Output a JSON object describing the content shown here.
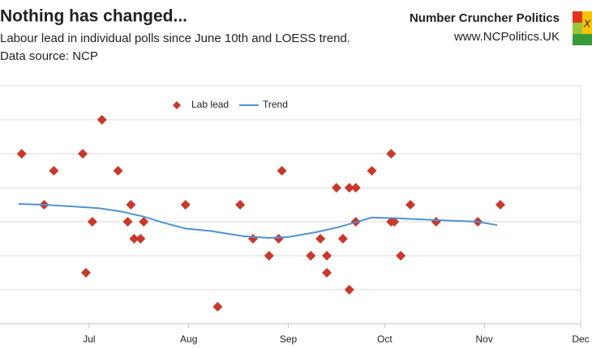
{
  "chart_data": {
    "type": "scatter",
    "title": "Nothing has changed...",
    "subtitle": "Labour lead in individual polls since June 10th and LOESS trend.",
    "source": "Data source: NCP",
    "xlim": [
      154,
      335
    ],
    "xticks": [
      {
        "value": 182,
        "label": "Jul"
      },
      {
        "value": 213,
        "label": "Aug"
      },
      {
        "value": 244,
        "label": "Sep"
      },
      {
        "value": 274,
        "label": "Oct"
      },
      {
        "value": 305,
        "label": "Nov"
      },
      {
        "value": 335,
        "label": "Dec"
      }
    ],
    "ylim": [
      0,
      14
    ],
    "yticks": [
      0,
      2,
      4,
      6,
      8,
      10,
      12,
      14
    ],
    "grid": true,
    "series": [
      {
        "name": "Lab lead",
        "type": "scatter",
        "color": "#c9382b",
        "x": [
          161,
          168,
          171,
          180,
          181,
          183,
          186,
          191,
          194,
          195,
          196,
          198,
          199,
          212,
          222,
          229,
          233,
          238,
          241,
          242,
          251,
          254,
          256,
          256,
          259,
          261,
          263,
          263,
          265,
          265,
          270,
          276,
          276,
          277,
          279,
          282,
          290,
          303,
          310
        ],
        "values": [
          10,
          7,
          9,
          10,
          3,
          6,
          12,
          9,
          6,
          7,
          5,
          5,
          6,
          7,
          1,
          7,
          5,
          4,
          5,
          9,
          4,
          5,
          4,
          3,
          8,
          5,
          8,
          2,
          8,
          6,
          9,
          10,
          6,
          6,
          4,
          7,
          6,
          6,
          7
        ]
      },
      {
        "name": "Trend",
        "type": "line",
        "color": "#4f93cf",
        "x": [
          160,
          168,
          177,
          185,
          192,
          199,
          205,
          212,
          220,
          230,
          238,
          244,
          253,
          260,
          270,
          278,
          290,
          303,
          309
        ],
        "values": [
          7.05,
          7.0,
          6.9,
          6.8,
          6.6,
          6.3,
          5.95,
          5.6,
          5.45,
          5.15,
          5.05,
          5.1,
          5.4,
          5.7,
          6.25,
          6.2,
          6.1,
          6.0,
          5.8
        ]
      }
    ]
  },
  "branding": {
    "name": "Number Cruncher Politics",
    "url": "www.NCPolitics.UK",
    "logo_text": "X"
  }
}
